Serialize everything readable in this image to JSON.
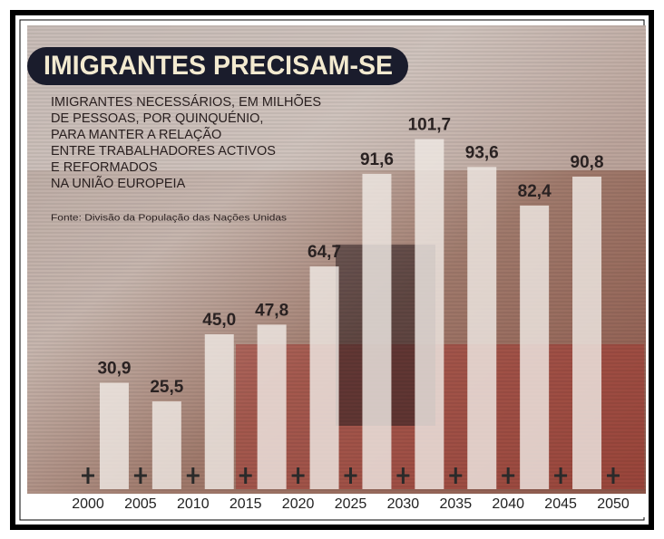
{
  "chart_data": {
    "type": "histogram",
    "title": "IMIGRANTES PRECISAM-SE",
    "subtitle": [
      "IMIGRANTES NECESSÁRIOS, EM MILHÕES",
      "DE PESSOAS, POR QUINQUÉNIO,",
      "PARA MANTER A RELAÇÃO",
      "ENTRE TRABALHADORES ACTIVOS",
      "E REFORMADOS",
      "NA UNIÃO EUROPEIA"
    ],
    "source": "Fonte: Divisão da População das Nações Unidas",
    "bins": [
      2000,
      2005,
      2010,
      2015,
      2020,
      2025,
      2030,
      2035,
      2040,
      2045,
      2050
    ],
    "values": [
      30.9,
      25.5,
      45.0,
      47.8,
      64.7,
      91.6,
      101.7,
      93.6,
      82.4,
      90.8
    ],
    "value_labels": [
      "30,9",
      "25,5",
      "45,0",
      "47,8",
      "64,7",
      "91,6",
      "101,7",
      "93,6",
      "82,4",
      "90,8"
    ],
    "xticks": [
      2000,
      2005,
      2010,
      2015,
      2020,
      2025,
      2030,
      2035,
      2040,
      2045,
      2050
    ],
    "color": "#efe9e4"
  }
}
